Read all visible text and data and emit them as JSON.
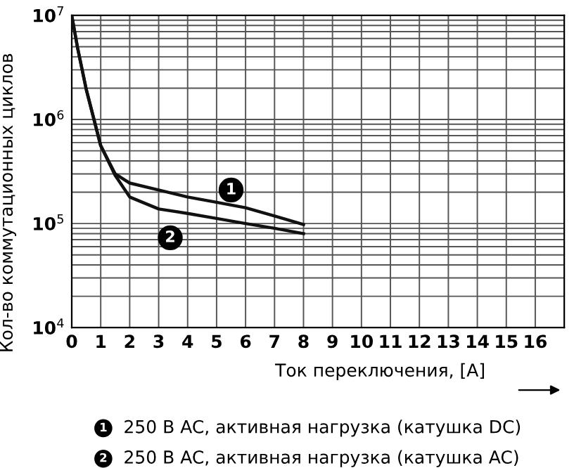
{
  "chart_data": {
    "type": "line",
    "xlabel": "Ток переключения, [A]",
    "ylabel": "Кол-во коммутационных циклов",
    "log": "y",
    "xlim": [
      0,
      17
    ],
    "xticks": [
      0,
      1,
      2,
      3,
      4,
      5,
      6,
      7,
      8,
      9,
      10,
      11,
      12,
      13,
      14,
      15,
      16
    ],
    "ylim": [
      10000,
      10000000
    ],
    "yticks": [
      {
        "value": 10000,
        "label": "10$^{4}$"
      },
      {
        "value": 100000,
        "label": "10$^{5}$"
      },
      {
        "value": 1000000,
        "label": "10$^{6}$"
      },
      {
        "value": 10000000,
        "label": "10$^{7}$"
      }
    ],
    "grid": true,
    "line_style": "solid",
    "series": [
      {
        "color": "#111111",
        "x": [
          0,
          0.2,
          0.5,
          1,
          1.5,
          2,
          3,
          4,
          5,
          6,
          7,
          8
        ],
        "values": [
          10000000,
          4900000,
          1950000,
          560000,
          300000,
          245000,
          210000,
          180000,
          160000,
          142000,
          118000,
          98000
        ]
      },
      {
        "color": "#111111",
        "x": [
          0,
          0.2,
          0.5,
          1,
          1.5,
          2,
          3,
          4,
          5,
          6,
          7,
          8
        ],
        "values": [
          10000000,
          4900000,
          1950000,
          560000,
          290000,
          180000,
          138000,
          125000,
          112000,
          100000,
          90000,
          80000
        ]
      }
    ],
    "annotations": [
      {
        "text": "1",
        "x": 5.5,
        "y": 210000
      },
      {
        "text": "2",
        "x": 3.4,
        "y": 73000
      },
      "250 В AC, активная нагрузка (катушка DC)",
      "250 В AC, активная нагрузка (катушка AC)"
    ]
  }
}
